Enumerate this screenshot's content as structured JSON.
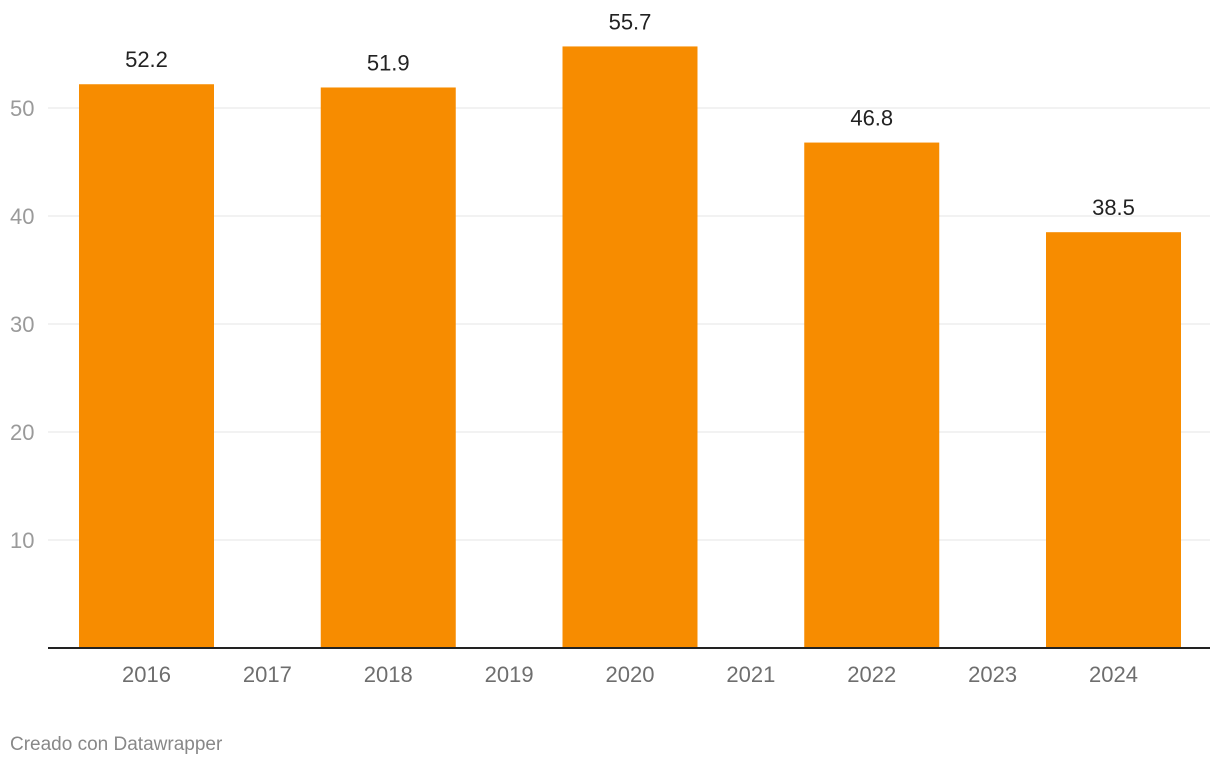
{
  "chart_data": {
    "type": "bar",
    "categories": [
      "2016",
      "2017",
      "2018",
      "2019",
      "2020",
      "2021",
      "2022",
      "2023",
      "2024"
    ],
    "values": [
      52.2,
      null,
      51.9,
      null,
      55.7,
      null,
      46.8,
      null,
      38.5
    ],
    "value_labels": [
      "52.2",
      "",
      "51.9",
      "",
      "55.7",
      "",
      "46.8",
      "",
      "38.5"
    ],
    "yticks": [
      10,
      20,
      30,
      40,
      50
    ],
    "ylim": [
      0,
      55.7
    ],
    "grid": true,
    "title": "",
    "xlabel": "",
    "ylabel": ""
  },
  "colors": {
    "bar": "#f78c00"
  },
  "footer": {
    "credit": "Creado con Datawrapper"
  }
}
